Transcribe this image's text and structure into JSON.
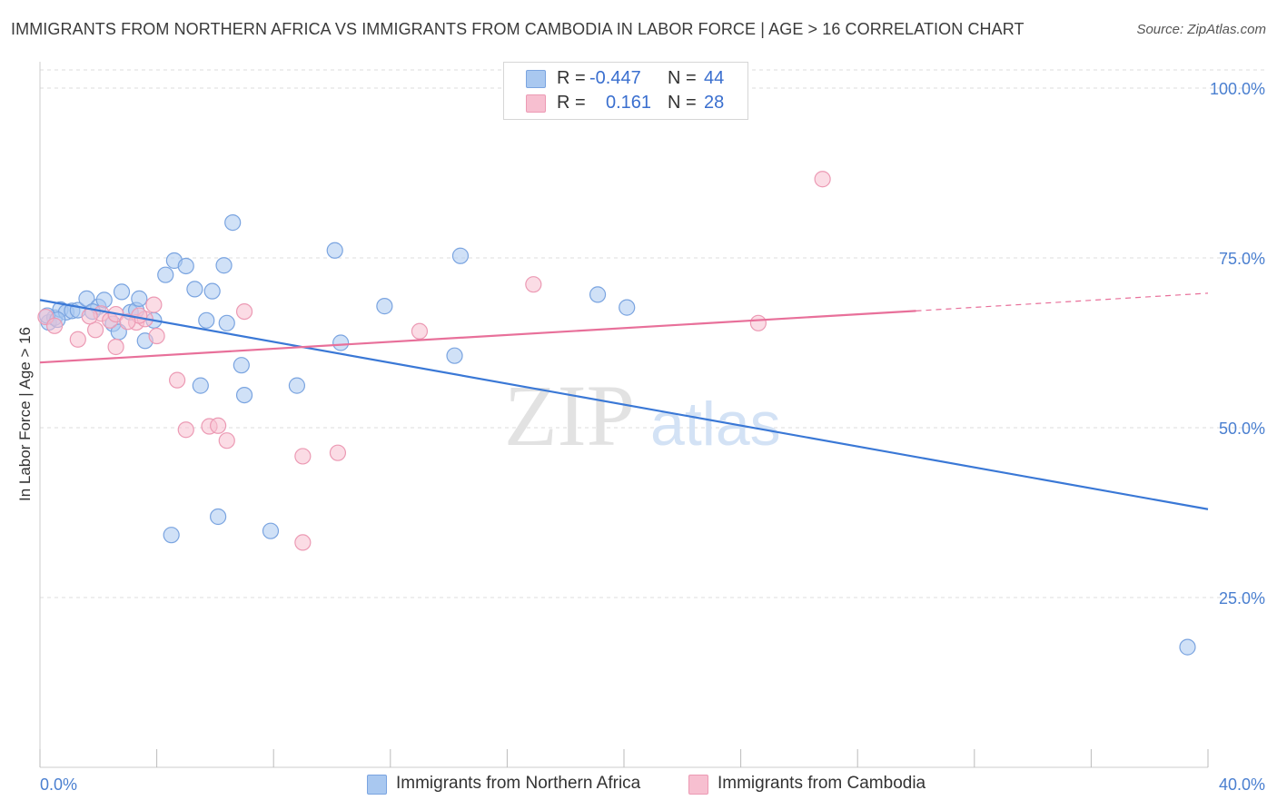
{
  "title": "IMMIGRANTS FROM NORTHERN AFRICA VS IMMIGRANTS FROM CAMBODIA IN LABOR FORCE | AGE > 16 CORRELATION CHART",
  "source": "Source: ZipAtlas.com",
  "watermark": {
    "zip": "ZIP",
    "atlas": "atlas"
  },
  "legend": {
    "r_label": "R =",
    "n_label": "N =",
    "series": [
      {
        "r": "-0.447",
        "n": "44"
      },
      {
        "r": "0.161",
        "n": "28"
      }
    ]
  },
  "bottom_legend": [
    "Immigrants from Northern Africa",
    "Immigrants from Cambodia"
  ],
  "colors": {
    "blue_fill": "#a9c8f0",
    "blue_stroke": "#7aa4e0",
    "blue_line": "#3a78d6",
    "pink_fill": "#f7bfd0",
    "pink_stroke": "#ec9ab4",
    "pink_line": "#e8709a",
    "tick_text": "#4a7fd0",
    "grid": "#dddddd"
  },
  "chart_data": {
    "type": "scatter",
    "ylabel": "In Labor Force | Age > 16",
    "xlim": [
      0,
      40
    ],
    "ylim": [
      0,
      104
    ],
    "x_tick_labels": [
      {
        "value": 0,
        "label": "0.0%"
      },
      {
        "value": 40,
        "label": "40.0%"
      }
    ],
    "y_tick_labels": [
      {
        "value": 25,
        "label": "25.0%"
      },
      {
        "value": 50,
        "label": "50.0%"
      },
      {
        "value": 75,
        "label": "75.0%"
      },
      {
        "value": 100,
        "label": "100.0%"
      }
    ],
    "grid": true,
    "series": [
      {
        "name": "Immigrants from Northern Africa",
        "color": "#a9c8f0",
        "points": [
          [
            0.3,
            65.5
          ],
          [
            0.5,
            66.2
          ],
          [
            0.7,
            67.4
          ],
          [
            0.9,
            67.0
          ],
          [
            1.1,
            67.2
          ],
          [
            1.3,
            67.3
          ],
          [
            1.6,
            69.0
          ],
          [
            2.0,
            67.8
          ],
          [
            2.2,
            68.8
          ],
          [
            2.5,
            65.3
          ],
          [
            2.7,
            64.1
          ],
          [
            2.8,
            70.0
          ],
          [
            3.1,
            67.0
          ],
          [
            3.3,
            67.3
          ],
          [
            3.4,
            69.0
          ],
          [
            3.6,
            62.8
          ],
          [
            3.9,
            65.8
          ],
          [
            4.3,
            72.5
          ],
          [
            4.6,
            74.6
          ],
          [
            5.0,
            73.8
          ],
          [
            5.3,
            70.4
          ],
          [
            5.5,
            56.2
          ],
          [
            5.7,
            65.8
          ],
          [
            5.9,
            70.1
          ],
          [
            6.3,
            73.9
          ],
          [
            6.4,
            65.4
          ],
          [
            6.6,
            80.2
          ],
          [
            6.9,
            59.2
          ],
          [
            7.0,
            54.8
          ],
          [
            8.8,
            56.2
          ],
          [
            10.1,
            76.1
          ],
          [
            10.3,
            62.5
          ],
          [
            11.8,
            67.9
          ],
          [
            14.2,
            60.6
          ],
          [
            14.4,
            75.3
          ],
          [
            19.1,
            69.6
          ],
          [
            20.1,
            67.7
          ],
          [
            4.5,
            34.2
          ],
          [
            6.1,
            36.9
          ],
          [
            7.9,
            34.8
          ],
          [
            39.3,
            17.7
          ],
          [
            0.25,
            66.5
          ],
          [
            0.6,
            65.9
          ],
          [
            1.8,
            67.1
          ]
        ]
      },
      {
        "name": "Immigrants from Cambodia",
        "color": "#f7bfd0",
        "points": [
          [
            0.2,
            66.3
          ],
          [
            0.5,
            65.0
          ],
          [
            1.3,
            63.0
          ],
          [
            1.9,
            64.4
          ],
          [
            2.1,
            66.8
          ],
          [
            2.4,
            65.8
          ],
          [
            2.6,
            66.7
          ],
          [
            3.3,
            65.5
          ],
          [
            3.6,
            66.0
          ],
          [
            3.9,
            68.1
          ],
          [
            4.0,
            63.5
          ],
          [
            2.6,
            61.9
          ],
          [
            4.7,
            57.0
          ],
          [
            5.0,
            49.7
          ],
          [
            5.8,
            50.2
          ],
          [
            6.1,
            50.3
          ],
          [
            6.4,
            48.1
          ],
          [
            7.0,
            67.1
          ],
          [
            9.0,
            45.8
          ],
          [
            10.2,
            46.3
          ],
          [
            9.0,
            33.1
          ],
          [
            13.0,
            64.2
          ],
          [
            16.9,
            71.1
          ],
          [
            24.6,
            65.4
          ],
          [
            26.8,
            86.6
          ],
          [
            3.4,
            66.5
          ],
          [
            1.7,
            66.4
          ],
          [
            3.0,
            65.6
          ]
        ]
      }
    ],
    "trend_lines": [
      {
        "series": "Immigrants from Northern Africa",
        "from": [
          0,
          68.8
        ],
        "to": [
          40,
          38.0
        ]
      },
      {
        "series": "Immigrants from Cambodia",
        "from": [
          0,
          59.6
        ],
        "to": [
          30,
          67.2
        ],
        "dashed_to": [
          40,
          69.8
        ]
      }
    ]
  }
}
